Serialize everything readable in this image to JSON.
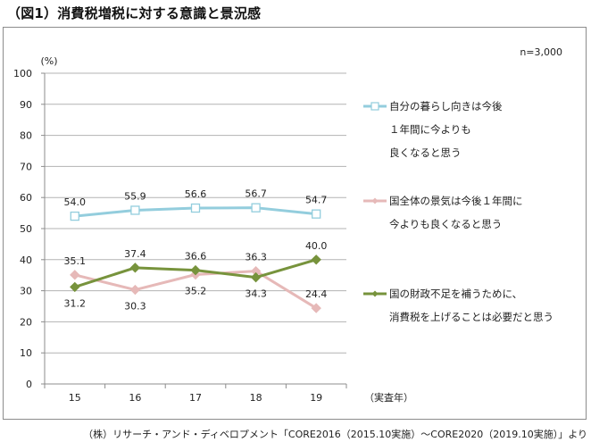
{
  "title": "（図1）消費税増税に対する意識と景況感",
  "note": "n=3,000",
  "source": "（株）リサーチ・アンド・ディベロプメント「CORE2016（2015.10実施）～CORE2020（2019.10実施）」より",
  "chart_data": {
    "type": "line",
    "title": "（図1）消費税増税に対する意識と景況感",
    "xlabel": "（実査年）",
    "ylabel": "(%)",
    "categories": [
      "15",
      "16",
      "17",
      "18",
      "19"
    ],
    "ylim": [
      0,
      100
    ],
    "yticks": [
      0,
      10,
      20,
      30,
      40,
      50,
      60,
      70,
      80,
      90,
      100
    ],
    "grid": true,
    "legend_position": "right",
    "series": [
      {
        "name": "自分の暮らし向きは今後１年間に今よりも良くなると思う",
        "legend_lines": [
          "自分の暮らし向きは今後",
          "１年間に今よりも",
          "良くなると思う"
        ],
        "color": "#93cddd",
        "marker": "square-open",
        "values": [
          54.0,
          55.9,
          56.6,
          56.7,
          54.7
        ],
        "label_position": "above"
      },
      {
        "name": "国全体の景気は今後１年間に今よりも良くなると思う",
        "legend_lines": [
          "国全体の景気は今後１年間に",
          "今よりも良くなると思う"
        ],
        "color": "#e6b9b8",
        "marker": "diamond",
        "values": [
          35.1,
          30.3,
          35.2,
          36.3,
          24.4
        ],
        "label_position": [
          "above",
          "below",
          "below",
          "above",
          "above"
        ]
      },
      {
        "name": "国の財政不足を補うために、消費税を上げることは必要だと思う",
        "legend_lines": [
          "国の財政不足を補うために、",
          "消費税を上げることは必要だと思う"
        ],
        "color": "#77933c",
        "marker": "diamond",
        "values": [
          31.2,
          37.4,
          36.6,
          34.3,
          40.0
        ],
        "label_position": [
          "below",
          "above",
          "above",
          "below",
          "above"
        ]
      }
    ]
  }
}
